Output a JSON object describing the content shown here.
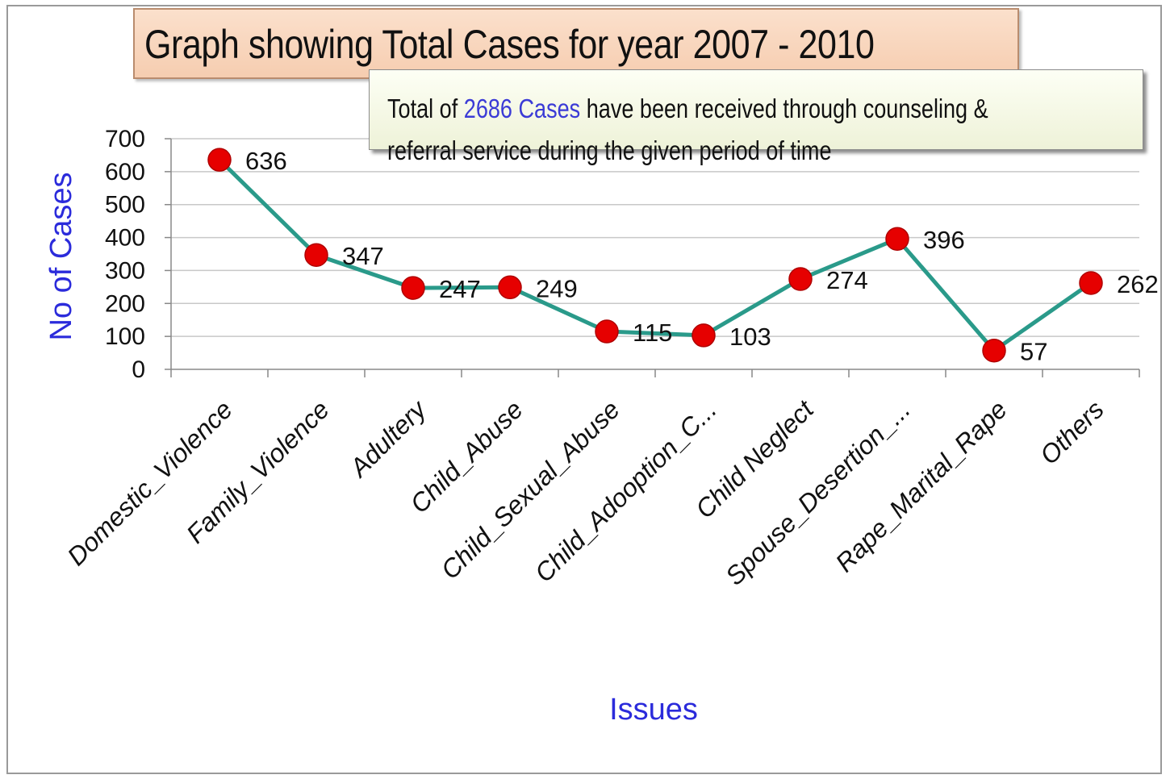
{
  "chart_data": {
    "type": "line",
    "title": "Graph showing Total Cases for year 2007 - 2010",
    "annotation": {
      "prefix": "Total of ",
      "highlight": "2686 Cases",
      "line1_rest": " have been  received  through counseling &",
      "line2": "referral service during the given  period of time"
    },
    "xlabel": "Issues",
    "ylabel": "No of Cases",
    "ylim": [
      0,
      700
    ],
    "yticks": [
      0,
      100,
      200,
      300,
      400,
      500,
      600,
      700
    ],
    "categories": [
      "Domestic_Violence",
      "Family_Violence",
      "Adultery",
      "Child_Abuse",
      "Child_Sexual_Abuse",
      "Child_Adooption_C...",
      "Child Neglect",
      "Spouse_Desertion_...",
      "Rape_Marital_Rape",
      "Others"
    ],
    "series": [
      {
        "values": [
          636,
          347,
          247,
          249,
          115,
          103,
          274,
          396,
          57,
          262
        ]
      }
    ],
    "grid": true,
    "legend": "none",
    "colors": {
      "line": "#2a9a8a",
      "marker": "#e60000",
      "marker_edge": "#b00000",
      "axis_title": "#2b2bdb"
    }
  }
}
